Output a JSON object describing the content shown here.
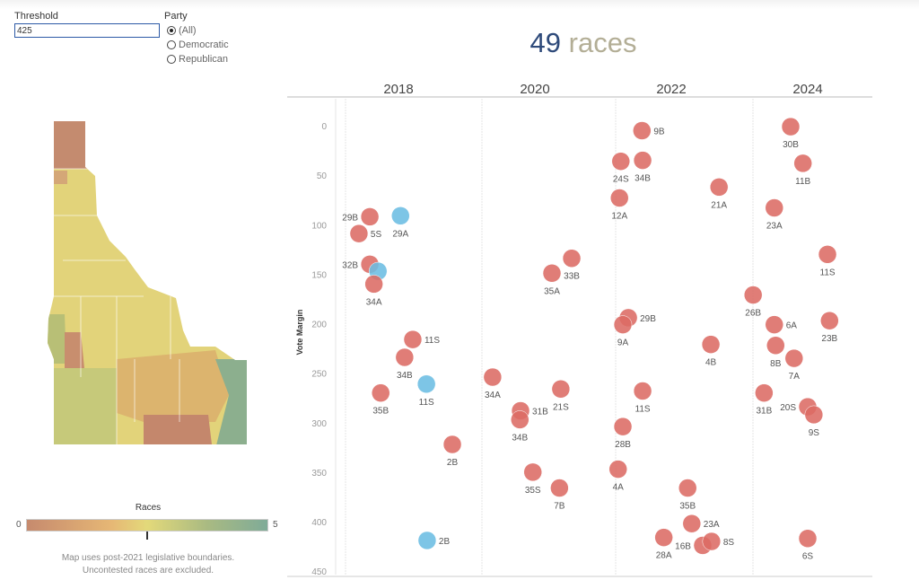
{
  "filters": {
    "threshold_label": "Threshold",
    "threshold_value": "425",
    "party_label": "Party",
    "party_options": [
      "(All)",
      "Democratic",
      "Republican"
    ],
    "party_selected": "(All)"
  },
  "headline": {
    "count": "49",
    "word": "races"
  },
  "colors": {
    "republican": "#dc6b64",
    "democratic": "#6bbde3",
    "count": "#2e4a7a"
  },
  "legend": {
    "title": "Races",
    "min": "0",
    "max": "5",
    "marker_value": 2.5
  },
  "notes": [
    "Map uses post-2021 legislative boundaries.",
    "Uncontested races are excluded."
  ],
  "chart_data": {
    "type": "scatter",
    "ylabel": "Vote Margin",
    "ylim": [
      0,
      450
    ],
    "yticks": [
      "0",
      "50",
      "100",
      "150",
      "200",
      "250",
      "300",
      "350",
      "400",
      "450"
    ],
    "years": [
      "2018",
      "2020",
      "2022",
      "2024"
    ],
    "points": [
      {
        "label": "29B",
        "x": 2017.58,
        "y": 92,
        "party": "R",
        "pos": "left"
      },
      {
        "label": "29A",
        "x": 2018.03,
        "y": 91,
        "party": "D",
        "pos": "below"
      },
      {
        "label": "5S",
        "x": 2017.42,
        "y": 109,
        "party": "R",
        "pos": "right"
      },
      {
        "label": "32B",
        "x": 2017.58,
        "y": 140,
        "party": "R",
        "pos": "left"
      },
      {
        "label": "",
        "x": 2017.7,
        "y": 147,
        "party": "D",
        "pos": "below"
      },
      {
        "label": "34A",
        "x": 2017.64,
        "y": 160,
        "party": "R",
        "pos": "below"
      },
      {
        "label": "11S",
        "x": 2018.21,
        "y": 216,
        "party": "R",
        "pos": "right"
      },
      {
        "label": "34B",
        "x": 2018.09,
        "y": 234,
        "party": "R",
        "pos": "below"
      },
      {
        "label": "11S",
        "x": 2018.41,
        "y": 261,
        "party": "D",
        "pos": "below"
      },
      {
        "label": "35B",
        "x": 2017.74,
        "y": 270,
        "party": "R",
        "pos": "below"
      },
      {
        "label": "2B",
        "x": 2018.79,
        "y": 322,
        "party": "R",
        "pos": "below"
      },
      {
        "label": "2B",
        "x": 2018.42,
        "y": 419,
        "party": "D",
        "pos": "right"
      },
      {
        "label": "34A",
        "x": 2019.38,
        "y": 254,
        "party": "R",
        "pos": "below"
      },
      {
        "label": "31B",
        "x": 2019.79,
        "y": 288,
        "party": "R",
        "pos": "right"
      },
      {
        "label": "34B",
        "x": 2019.78,
        "y": 297,
        "party": "R",
        "pos": "below"
      },
      {
        "label": "21S",
        "x": 2020.38,
        "y": 266,
        "party": "R",
        "pos": "below"
      },
      {
        "label": "33B",
        "x": 2020.54,
        "y": 134,
        "party": "R",
        "pos": "below"
      },
      {
        "label": "35A",
        "x": 2020.25,
        "y": 149,
        "party": "R",
        "pos": "below"
      },
      {
        "label": "35S",
        "x": 2019.97,
        "y": 350,
        "party": "R",
        "pos": "below"
      },
      {
        "label": "7B",
        "x": 2020.36,
        "y": 366,
        "party": "R",
        "pos": "below"
      },
      {
        "label": "9B",
        "x": 2021.57,
        "y": 5,
        "party": "R",
        "pos": "right"
      },
      {
        "label": "24S",
        "x": 2021.26,
        "y": 36,
        "party": "R",
        "pos": "below"
      },
      {
        "label": "34B",
        "x": 2021.58,
        "y": 35,
        "party": "R",
        "pos": "below"
      },
      {
        "label": "12A",
        "x": 2021.24,
        "y": 73,
        "party": "R",
        "pos": "below"
      },
      {
        "label": "21A",
        "x": 2022.7,
        "y": 62,
        "party": "R",
        "pos": "below"
      },
      {
        "label": "29B",
        "x": 2021.37,
        "y": 194,
        "party": "R",
        "pos": "right"
      },
      {
        "label": "9A",
        "x": 2021.29,
        "y": 201,
        "party": "R",
        "pos": "below"
      },
      {
        "label": "4B",
        "x": 2022.58,
        "y": 221,
        "party": "R",
        "pos": "below"
      },
      {
        "label": "11S",
        "x": 2021.58,
        "y": 268,
        "party": "R",
        "pos": "below"
      },
      {
        "label": "28B",
        "x": 2021.29,
        "y": 304,
        "party": "R",
        "pos": "below"
      },
      {
        "label": "4A",
        "x": 2021.22,
        "y": 347,
        "party": "R",
        "pos": "below"
      },
      {
        "label": "35B",
        "x": 2022.24,
        "y": 366,
        "party": "R",
        "pos": "below"
      },
      {
        "label": "23A",
        "x": 2022.3,
        "y": 402,
        "party": "R",
        "pos": "right"
      },
      {
        "label": "28A",
        "x": 2021.89,
        "y": 416,
        "party": "R",
        "pos": "below"
      },
      {
        "label": "16B",
        "x": 2022.46,
        "y": 424,
        "party": "R",
        "pos": "left"
      },
      {
        "label": "8S",
        "x": 2022.59,
        "y": 420,
        "party": "R",
        "pos": "right"
      },
      {
        "label": "30B",
        "x": 2023.75,
        "y": 1,
        "party": "R",
        "pos": "below"
      },
      {
        "label": "11B",
        "x": 2023.93,
        "y": 38,
        "party": "R",
        "pos": "below"
      },
      {
        "label": "23A",
        "x": 2023.51,
        "y": 83,
        "party": "R",
        "pos": "below"
      },
      {
        "label": "11S",
        "x": 2024.29,
        "y": 130,
        "party": "R",
        "pos": "below"
      },
      {
        "label": "26B",
        "x": 2023.2,
        "y": 171,
        "party": "R",
        "pos": "below"
      },
      {
        "label": "6A",
        "x": 2023.51,
        "y": 201,
        "party": "R",
        "pos": "right"
      },
      {
        "label": "23B",
        "x": 2024.32,
        "y": 197,
        "party": "R",
        "pos": "below"
      },
      {
        "label": "8B",
        "x": 2023.53,
        "y": 222,
        "party": "R",
        "pos": "below"
      },
      {
        "label": "7A",
        "x": 2023.8,
        "y": 235,
        "party": "R",
        "pos": "below"
      },
      {
        "label": "31B",
        "x": 2023.36,
        "y": 270,
        "party": "R",
        "pos": "below"
      },
      {
        "label": "20S",
        "x": 2024.0,
        "y": 284,
        "party": "R",
        "pos": "left"
      },
      {
        "label": "9S",
        "x": 2024.09,
        "y": 292,
        "party": "R",
        "pos": "below"
      },
      {
        "label": "6S",
        "x": 2024.0,
        "y": 417,
        "party": "R",
        "pos": "below"
      }
    ]
  }
}
